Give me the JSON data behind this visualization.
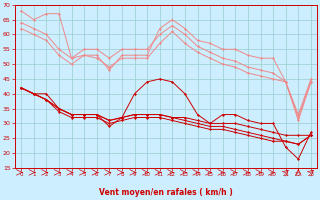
{
  "xlabel": "Vent moyen/en rafales ( km/h )",
  "x": [
    0,
    1,
    2,
    3,
    4,
    5,
    6,
    7,
    8,
    9,
    10,
    11,
    12,
    13,
    14,
    15,
    16,
    17,
    18,
    19,
    20,
    21,
    22,
    23
  ],
  "background_color": "#cceeff",
  "grid_color": "#99cccc",
  "ylim": [
    15,
    70
  ],
  "yticks": [
    15,
    20,
    25,
    30,
    35,
    40,
    45,
    50,
    55,
    60,
    65,
    70
  ],
  "line1": [
    68,
    65,
    67,
    67,
    52,
    53,
    53,
    48,
    53,
    53,
    53,
    62,
    65,
    62,
    58,
    57,
    55,
    55,
    53,
    52,
    52,
    44,
    33,
    45
  ],
  "line2": [
    64,
    62,
    60,
    55,
    52,
    55,
    55,
    52,
    55,
    55,
    55,
    60,
    63,
    60,
    56,
    54,
    52,
    51,
    49,
    48,
    47,
    44,
    32,
    44
  ],
  "line3": [
    62,
    60,
    58,
    53,
    50,
    53,
    52,
    49,
    52,
    52,
    52,
    57,
    61,
    57,
    54,
    52,
    50,
    49,
    47,
    46,
    45,
    44,
    31,
    44
  ],
  "line4": [
    42,
    40,
    40,
    35,
    33,
    33,
    33,
    29,
    32,
    40,
    44,
    45,
    44,
    40,
    33,
    30,
    33,
    33,
    31,
    30,
    30,
    22,
    18,
    27
  ],
  "line5": [
    42,
    40,
    38,
    35,
    33,
    33,
    33,
    31,
    32,
    33,
    33,
    33,
    32,
    32,
    31,
    30,
    30,
    30,
    29,
    28,
    27,
    26,
    26,
    26
  ],
  "line6": [
    42,
    40,
    38,
    35,
    33,
    33,
    33,
    31,
    32,
    33,
    33,
    33,
    32,
    31,
    30,
    29,
    29,
    28,
    27,
    26,
    25,
    24,
    23,
    26
  ],
  "line7": [
    42,
    40,
    38,
    34,
    32,
    32,
    32,
    30,
    31,
    32,
    32,
    32,
    31,
    30,
    29,
    28,
    28,
    27,
    26,
    25,
    24,
    24,
    23,
    26
  ],
  "light_pink": "#f08888",
  "dark_red": "#cc0000",
  "axis_color": "#cc0000"
}
